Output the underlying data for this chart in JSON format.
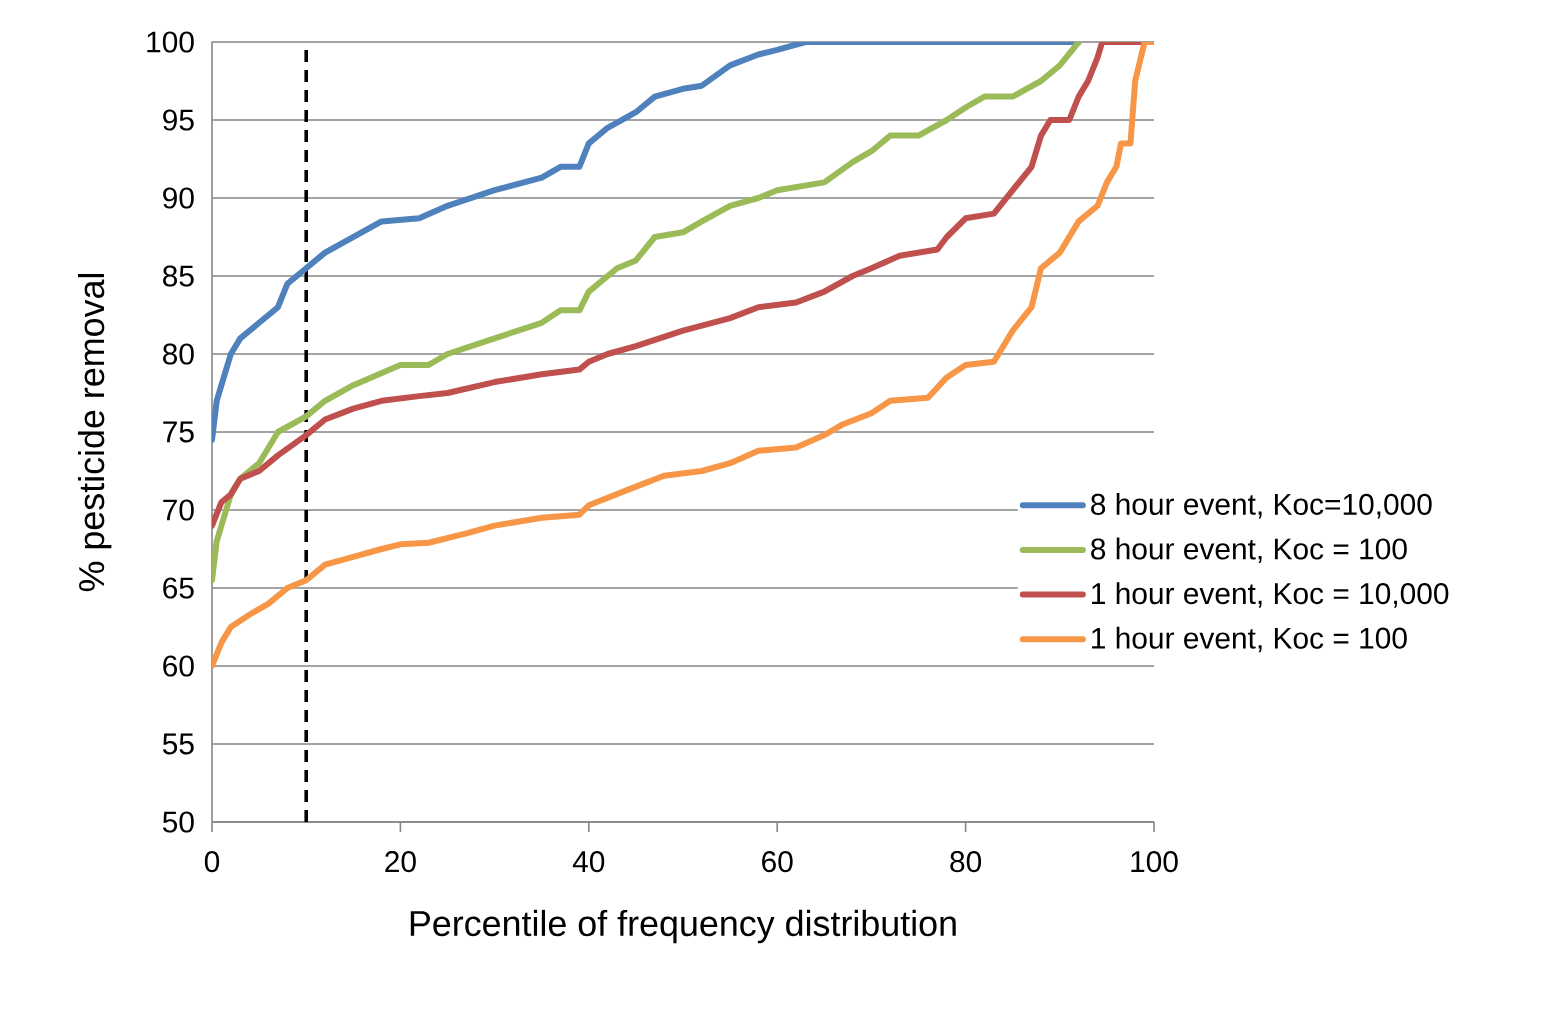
{
  "chart_data": {
    "type": "line",
    "xlabel": "Percentile of frequency distribution",
    "ylabel": "% pesticide removal",
    "xlim": [
      0,
      100
    ],
    "ylim": [
      50,
      100
    ],
    "xticks": [
      0,
      20,
      40,
      60,
      80,
      100
    ],
    "yticks": [
      50,
      55,
      60,
      65,
      70,
      75,
      80,
      85,
      90,
      95,
      100
    ],
    "grid": "y",
    "legend": "right",
    "ref_lines": [
      {
        "axis": "x",
        "value": 10,
        "color": "#000000",
        "line_style": "dashed"
      }
    ],
    "series": [
      {
        "name": "8 hour event, Koc=10,000",
        "color": "#4f81bd",
        "x": [
          0,
          0.5,
          1,
          2,
          3,
          5,
          7,
          8,
          10,
          12,
          15,
          18,
          22,
          25,
          30,
          35,
          37,
          39,
          40,
          42,
          45,
          47,
          50,
          52,
          55,
          58,
          60,
          63,
          92
        ],
        "values": [
          74.5,
          77,
          78,
          80,
          81,
          82,
          83,
          84.5,
          85.5,
          86.5,
          87.5,
          88.5,
          88.7,
          89.5,
          90.5,
          91.3,
          92,
          92,
          93.5,
          94.5,
          95.5,
          96.5,
          97,
          97.2,
          98.5,
          99.2,
          99.5,
          100,
          100
        ]
      },
      {
        "name": "8 hour event, Koc = 100",
        "color": "#9bbb59",
        "x": [
          0,
          0.5,
          1,
          2,
          3,
          5,
          7,
          10,
          12,
          15,
          20,
          23,
          25,
          30,
          35,
          37,
          39,
          40,
          43,
          45,
          47,
          50,
          52,
          55,
          58,
          60,
          65,
          68,
          70,
          72,
          75,
          78,
          80,
          82,
          85,
          88,
          90,
          92
        ],
        "values": [
          65.5,
          68,
          69,
          71,
          72,
          73,
          75,
          76,
          77,
          78,
          79.3,
          79.3,
          80,
          81,
          82,
          82.8,
          82.8,
          84,
          85.5,
          86,
          87.5,
          87.8,
          88.5,
          89.5,
          90,
          90.5,
          91,
          92.3,
          93,
          94,
          94,
          95,
          95.8,
          96.5,
          96.5,
          97.5,
          98.5,
          100
        ]
      },
      {
        "name": "1 hour event, Koc = 10,000",
        "color": "#c0504d",
        "x": [
          0,
          1,
          2,
          3,
          5,
          7,
          10,
          12,
          15,
          18,
          22,
          25,
          30,
          35,
          39,
          40,
          42,
          45,
          50,
          55,
          58,
          62,
          65,
          68,
          70,
          73,
          77,
          78,
          80,
          83,
          85,
          87,
          88,
          89,
          91,
          92,
          93,
          94,
          94.5,
          100
        ],
        "values": [
          69,
          70.5,
          71,
          72,
          72.5,
          73.5,
          74.8,
          75.8,
          76.5,
          77,
          77.3,
          77.5,
          78.2,
          78.7,
          79,
          79.5,
          80,
          80.5,
          81.5,
          82.3,
          83,
          83.3,
          84,
          85,
          85.5,
          86.3,
          86.7,
          87.5,
          88.7,
          89,
          90.5,
          92,
          94,
          95,
          95,
          96.5,
          97.5,
          99,
          100,
          100
        ]
      },
      {
        "name": "1 hour event, Koc = 100",
        "color": "#f79646",
        "x": [
          0,
          1,
          2,
          4,
          6,
          8,
          10,
          12,
          15,
          18,
          20,
          23,
          27,
          30,
          35,
          39,
          40,
          45,
          48,
          52,
          55,
          58,
          62,
          65,
          67,
          70,
          72,
          76,
          78,
          80,
          83,
          85,
          87,
          88,
          90,
          92,
          94,
          95,
          96,
          96.5,
          97.5,
          98,
          99,
          100
        ],
        "values": [
          60,
          61.5,
          62.5,
          63.3,
          64,
          65,
          65.5,
          66.5,
          67,
          67.5,
          67.8,
          67.9,
          68.5,
          69,
          69.5,
          69.7,
          70.3,
          71.5,
          72.2,
          72.5,
          73,
          73.8,
          74,
          74.8,
          75.5,
          76.2,
          77,
          77.2,
          78.5,
          79.3,
          79.5,
          81.5,
          83,
          85.5,
          86.5,
          88.5,
          89.5,
          91,
          92,
          93.5,
          93.5,
          97.5,
          100,
          100
        ]
      }
    ]
  }
}
